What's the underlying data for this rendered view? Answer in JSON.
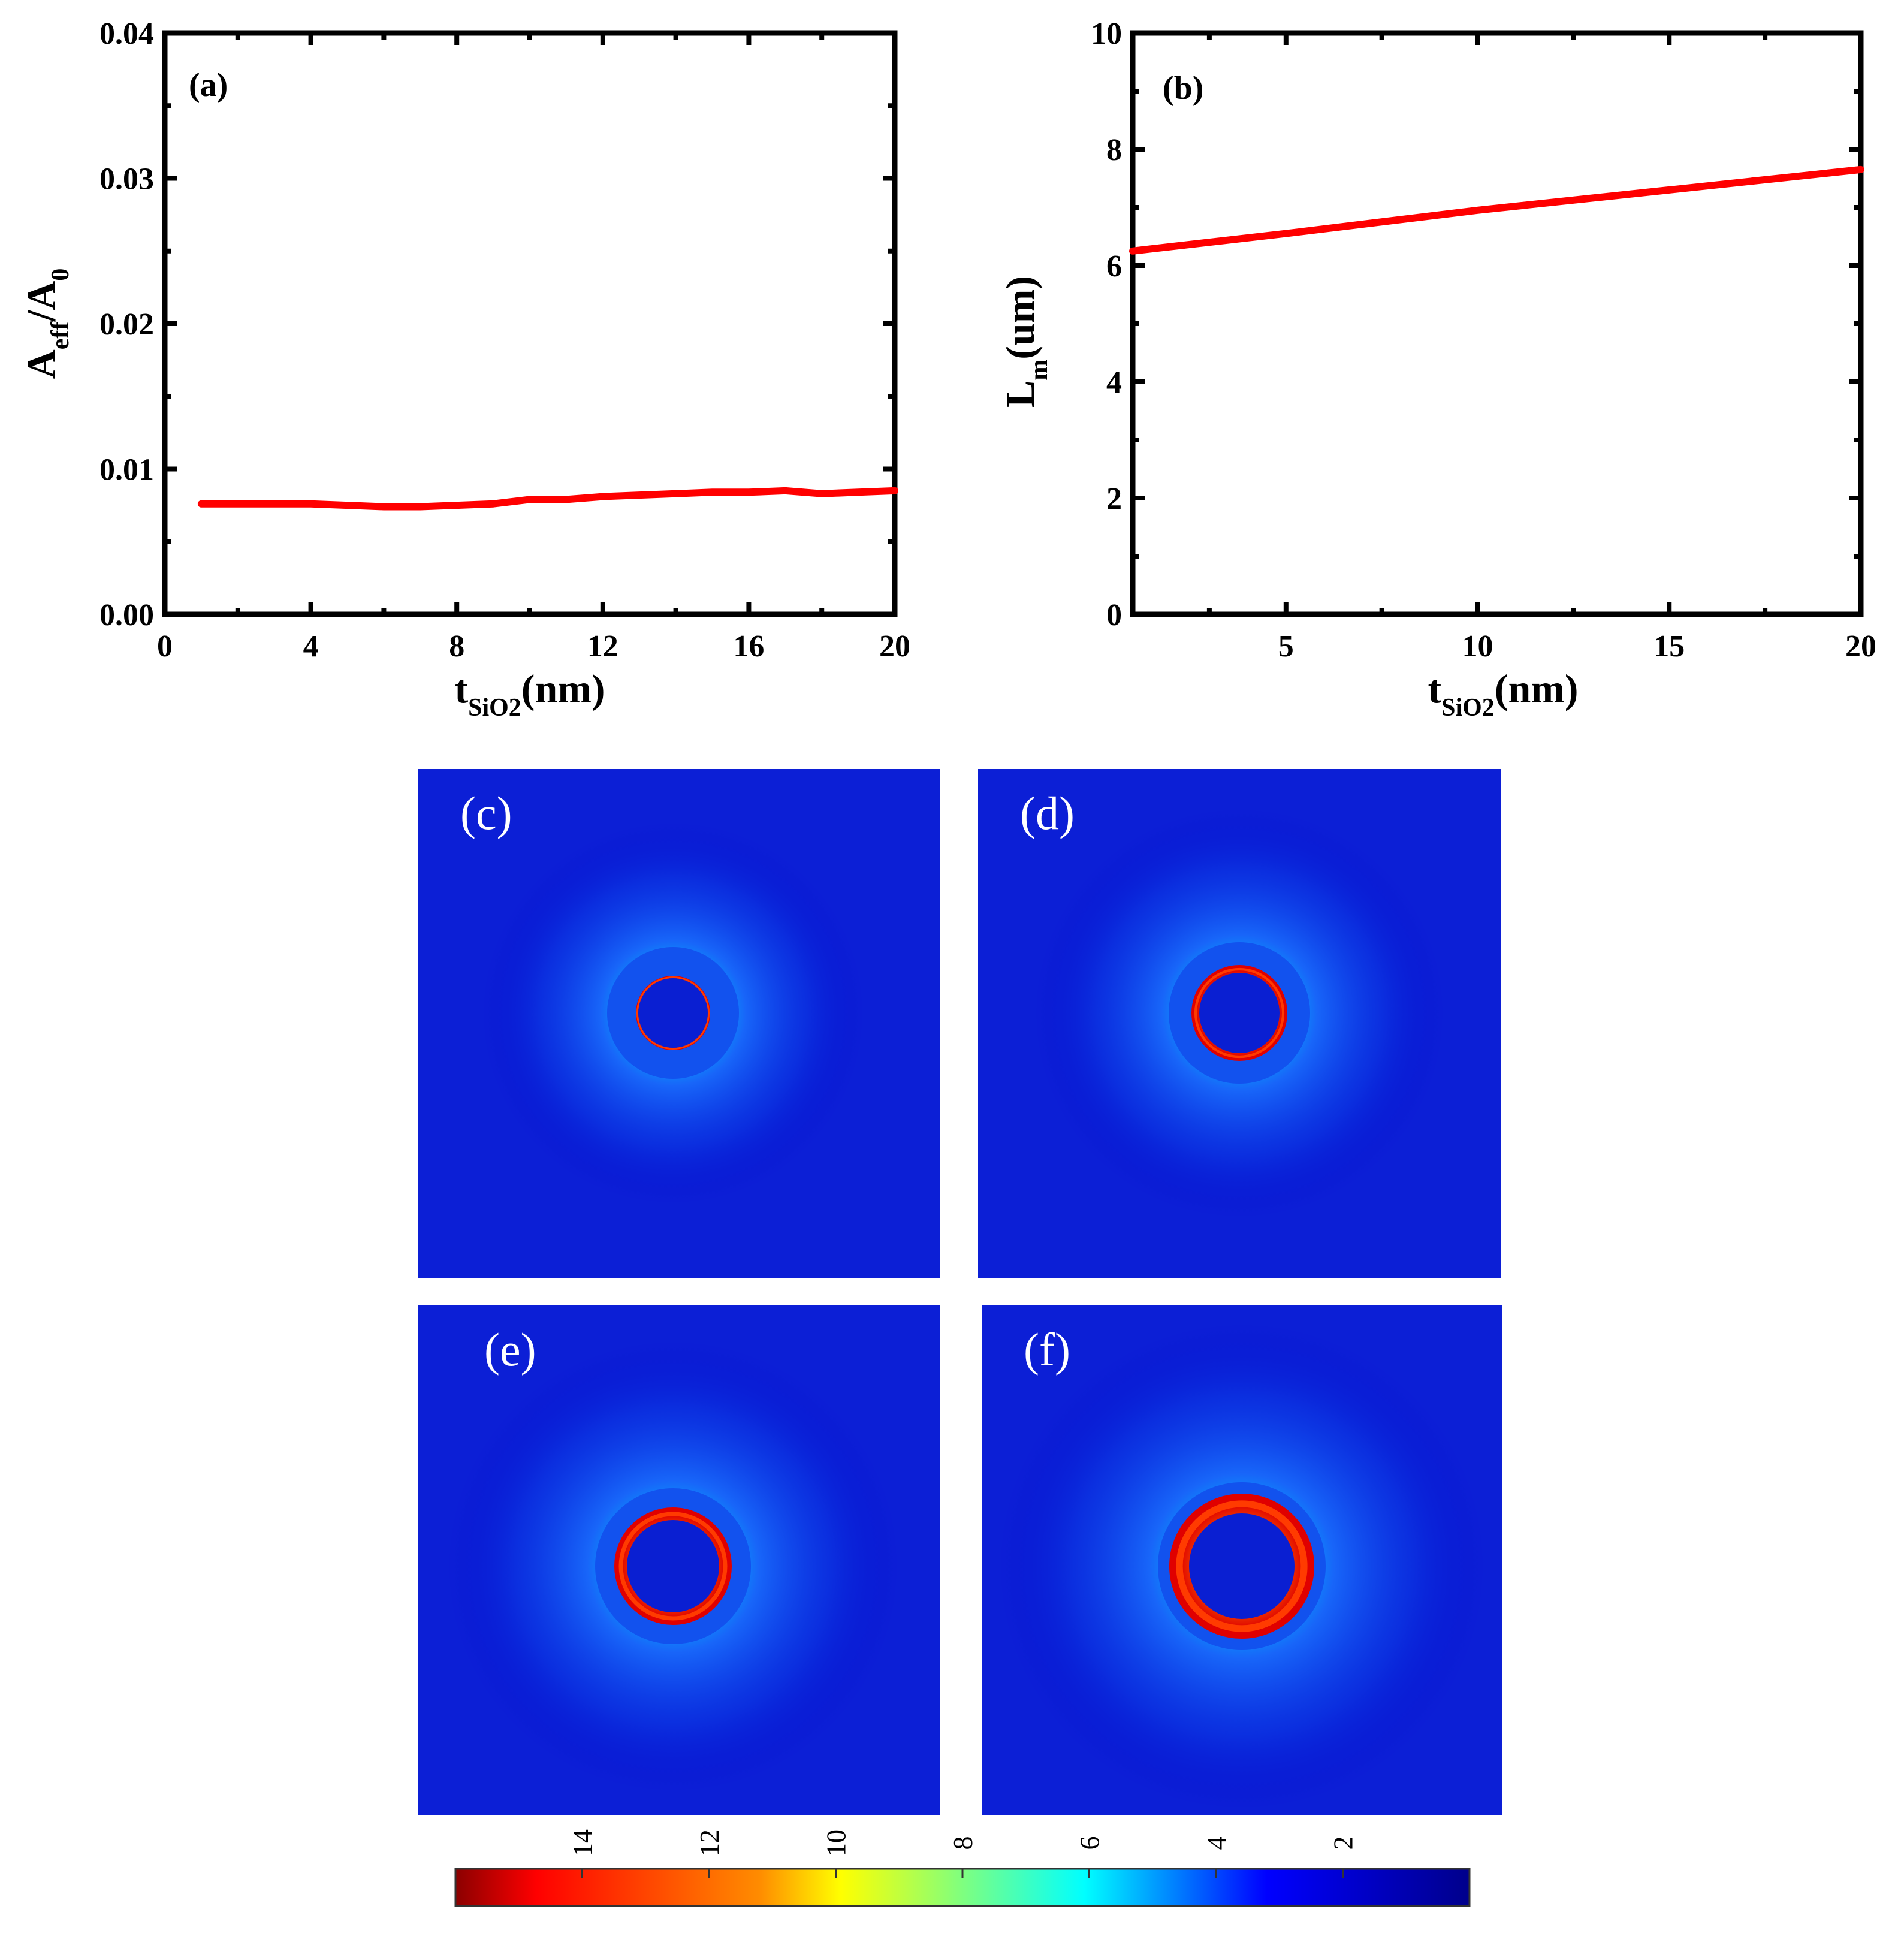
{
  "chart_data": [
    {
      "id": "a",
      "type": "line",
      "panel_label": "(a)",
      "xlabel_main": "t",
      "xlabel_sub": "SiO2",
      "xlabel_unit": "(nm)",
      "ylabel_main": "A",
      "ylabel_sub": "eff",
      "ylabel_mid": "/A",
      "ylabel_sub2": "0",
      "xlim": [
        0,
        20
      ],
      "ylim": [
        0,
        0.04
      ],
      "xticks": [
        0,
        4,
        8,
        12,
        16,
        20
      ],
      "xtick_labels": [
        "0",
        "4",
        "8",
        "12",
        "16",
        "20"
      ],
      "yticks": [
        0,
        0.01,
        0.02,
        0.03,
        0.04
      ],
      "ytick_labels": [
        "0.00",
        "0.01",
        "0.02",
        "0.03",
        "0.04"
      ],
      "series": [
        {
          "name": "Aeff/A0",
          "color": "#ff0000",
          "x": [
            1,
            2,
            3,
            4,
            5,
            6,
            7,
            8,
            9,
            10,
            11,
            12,
            13,
            14,
            15,
            16,
            17,
            18,
            19,
            20
          ],
          "y": [
            0.0076,
            0.0076,
            0.0076,
            0.0076,
            0.0075,
            0.0074,
            0.0074,
            0.0075,
            0.0076,
            0.0079,
            0.0079,
            0.0081,
            0.0082,
            0.0083,
            0.0084,
            0.0084,
            0.0085,
            0.0083,
            0.0084,
            0.0085
          ]
        }
      ]
    },
    {
      "id": "b",
      "type": "line",
      "panel_label": "(b)",
      "xlabel_main": "t",
      "xlabel_sub": "SiO2",
      "xlabel_unit": "(nm)",
      "ylabel_main": "L",
      "ylabel_sub": "m",
      "ylabel_unit": "(um)",
      "xlim": [
        1,
        20
      ],
      "ylim": [
        0,
        10
      ],
      "xticks": [
        5,
        10,
        15,
        20
      ],
      "xtick_labels": [
        "5",
        "10",
        "15",
        "20"
      ],
      "yticks": [
        0,
        2,
        4,
        6,
        8,
        10
      ],
      "ytick_labels": [
        "0",
        "2",
        "4",
        "6",
        "8",
        "10"
      ],
      "series": [
        {
          "name": "Lm",
          "color": "#ff0000",
          "x": [
            1,
            5,
            10,
            15,
            20
          ],
          "y": [
            6.25,
            6.55,
            6.95,
            7.3,
            7.65
          ]
        }
      ]
    },
    {
      "id": "maps",
      "type": "heatmap",
      "panels": [
        {
          "label": "(c)",
          "outer_radius": 110,
          "inner_radius": 58,
          "ring_width": 3
        },
        {
          "label": "(d)",
          "outer_radius": 118,
          "inner_radius": 67,
          "ring_width": 12
        },
        {
          "label": "(e)",
          "outer_radius": 130,
          "inner_radius": 77,
          "ring_width": 20
        },
        {
          "label": "(f)",
          "outer_radius": 140,
          "inner_radius": 88,
          "ring_width": 32
        }
      ],
      "colorbar": {
        "tick_labels": [
          "14",
          "12",
          "10",
          "8",
          "6",
          "4",
          "2"
        ],
        "tick_values": [
          14,
          12,
          10,
          8,
          6,
          4,
          2
        ],
        "range": [
          0,
          16
        ],
        "colors": [
          "#8b0000",
          "#ff0000",
          "#ff8c00",
          "#ffff00",
          "#7fff7f",
          "#00ffff",
          "#0000ff",
          "#00008b"
        ]
      }
    }
  ]
}
